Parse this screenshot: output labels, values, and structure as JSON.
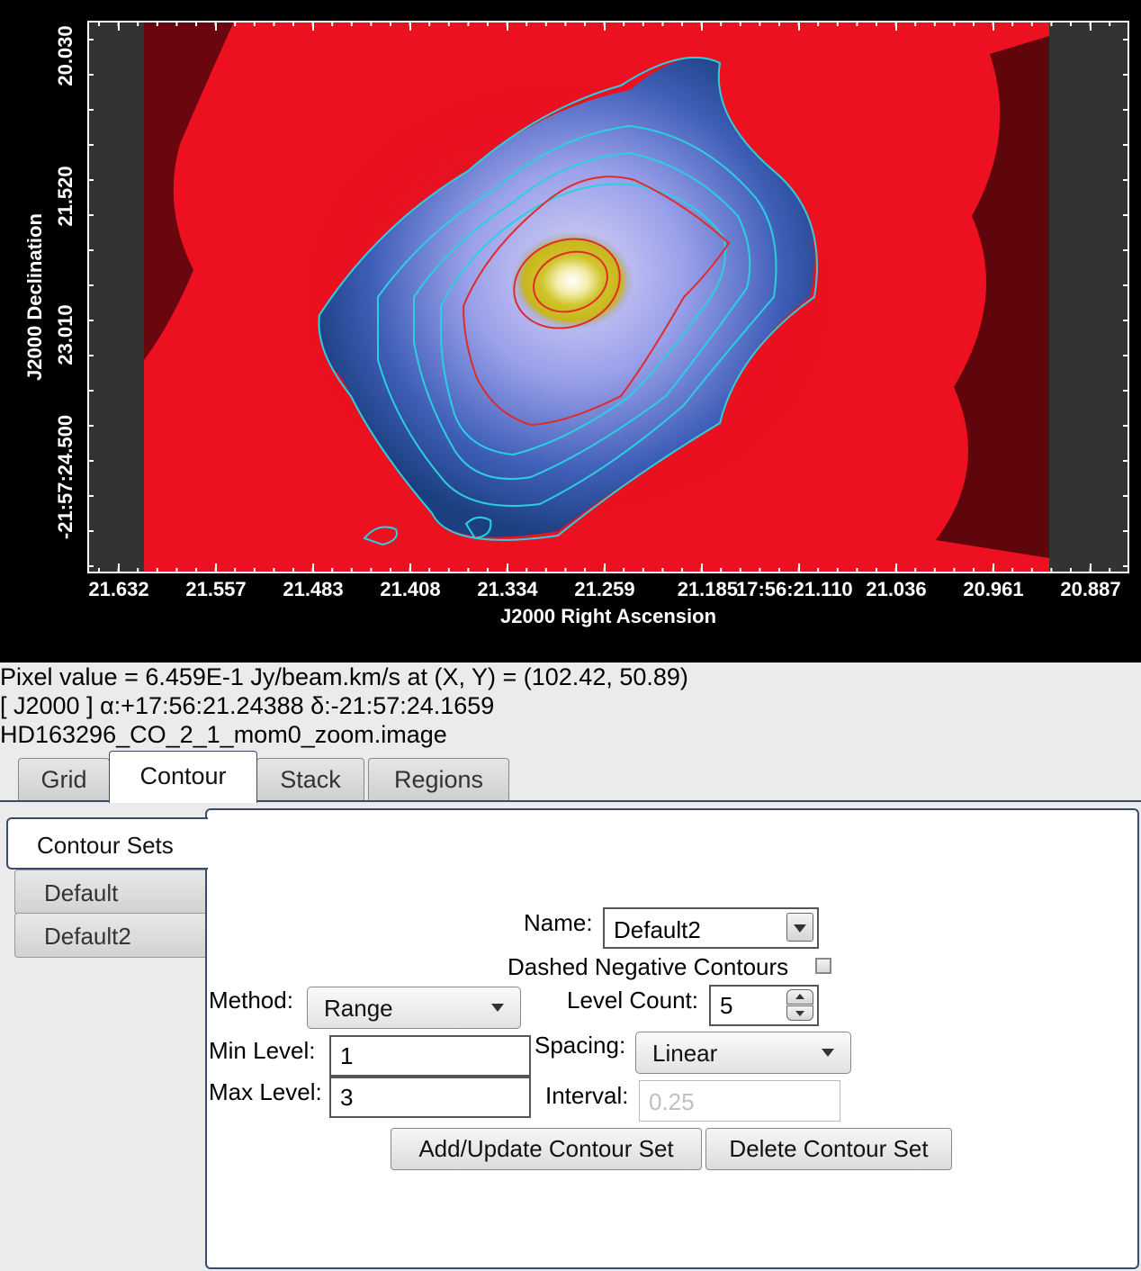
{
  "image": {
    "ylabel": "J2000 Declination",
    "xlabel": "J2000 Right Ascension",
    "xticks": [
      "21.632",
      "21.557",
      "21.483",
      "21.408",
      "21.334",
      "21.259",
      "21.185",
      "17:56:21.110",
      "21.036",
      "20.961",
      "20.887"
    ],
    "yticks": [
      "20.030",
      "21.520",
      "23.010",
      "-21:57:24.500"
    ],
    "colormap": [
      "#000000",
      "#e8101e",
      "#2a4f8f",
      "#9a9de8",
      "#c8c51e",
      "#ffffff"
    ],
    "contour_colors": [
      "#2ad0e0",
      "#e02a2a"
    ]
  },
  "info": {
    "pixel_value": "Pixel value = 6.459E-1 Jy/beam.km/s at (X, Y) = (102.42, 50.89)",
    "coordinates": "[ J2000 ] α:+17:56:21.24388 δ:-21:57:24.1659",
    "filename": "HD163296_CO_2_1_mom0_zoom.image"
  },
  "tabs": [
    "Grid",
    "Contour",
    "Stack",
    "Regions"
  ],
  "active_tab": "Contour",
  "contour": {
    "sets_header": "Contour Sets",
    "sets": [
      "Default",
      "Default2"
    ],
    "name_label": "Name:",
    "name_value": "Default2",
    "dashed_label": "Dashed Negative Contours",
    "dashed_checked": false,
    "method_label": "Method:",
    "method_value": "Range",
    "level_count_label": "Level Count:",
    "level_count_value": "5",
    "min_label": "Min Level:",
    "min_value": "1",
    "spacing_label": "Spacing:",
    "spacing_value": "Linear",
    "max_label": "Max Level:",
    "max_value": "3",
    "interval_label": "Interval:",
    "interval_placeholder": "0.25",
    "add_button": "Add/Update Contour Set",
    "delete_button": "Delete Contour Set"
  }
}
